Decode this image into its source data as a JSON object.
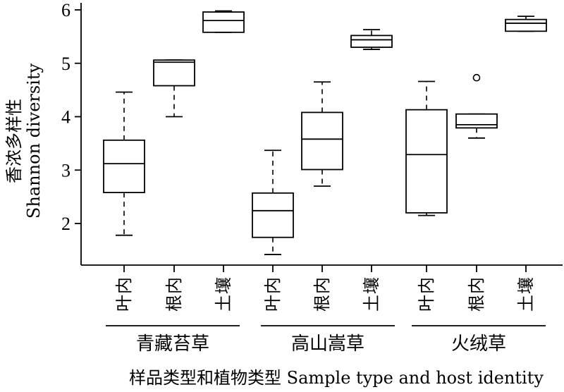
{
  "chart_data": {
    "type": "boxplot",
    "ylabel_cn": "香浓多样性",
    "ylabel_en": "Shannon diversity",
    "xlabel": "样品类型和植物类型 Sample type and host identity",
    "ylim": [
      1.2,
      6.2
    ],
    "yticks": [
      "2",
      "3",
      "4",
      "5",
      "6"
    ],
    "yticks_values": [
      2,
      3,
      4,
      5,
      6
    ],
    "groups": [
      "青藏苔草",
      "高山嵩草",
      "火绒草"
    ],
    "categories": [
      "叶内",
      "根内",
      "土壤",
      "叶内",
      "根内",
      "土壤",
      "叶内",
      "根内",
      "土壤"
    ],
    "boxes": [
      {
        "group": "青藏苔草",
        "category": "叶内",
        "min": 1.78,
        "q1": 2.58,
        "median": 3.12,
        "q3": 3.56,
        "max": 4.46,
        "outliers": []
      },
      {
        "group": "青藏苔草",
        "category": "根内",
        "min": 4.0,
        "q1": 4.58,
        "median": 5.02,
        "q3": 5.06,
        "max": 5.06,
        "outliers": []
      },
      {
        "group": "青藏苔草",
        "category": "土壤",
        "min": 5.58,
        "q1": 5.58,
        "median": 5.8,
        "q3": 5.96,
        "max": 5.98,
        "outliers": []
      },
      {
        "group": "高山嵩草",
        "category": "叶内",
        "min": 1.42,
        "q1": 1.74,
        "median": 2.24,
        "q3": 2.57,
        "max": 3.37,
        "outliers": []
      },
      {
        "group": "高山嵩草",
        "category": "根内",
        "min": 2.7,
        "q1": 3.01,
        "median": 3.58,
        "q3": 4.08,
        "max": 4.65,
        "outliers": []
      },
      {
        "group": "高山嵩草",
        "category": "土壤",
        "min": 5.26,
        "q1": 5.3,
        "median": 5.44,
        "q3": 5.52,
        "max": 5.63,
        "outliers": []
      },
      {
        "group": "火绒草",
        "category": "叶内",
        "min": 2.15,
        "q1": 2.2,
        "median": 3.29,
        "q3": 4.13,
        "max": 4.66,
        "outliers": []
      },
      {
        "group": "火绒草",
        "category": "根内",
        "min": 3.6,
        "q1": 3.79,
        "median": 3.85,
        "q3": 4.05,
        "max": 4.05,
        "outliers": [
          4.73
        ]
      },
      {
        "group": "火绒草",
        "category": "土壤",
        "min": 5.6,
        "q1": 5.6,
        "median": 5.75,
        "q3": 5.82,
        "max": 5.88,
        "outliers": []
      }
    ]
  }
}
